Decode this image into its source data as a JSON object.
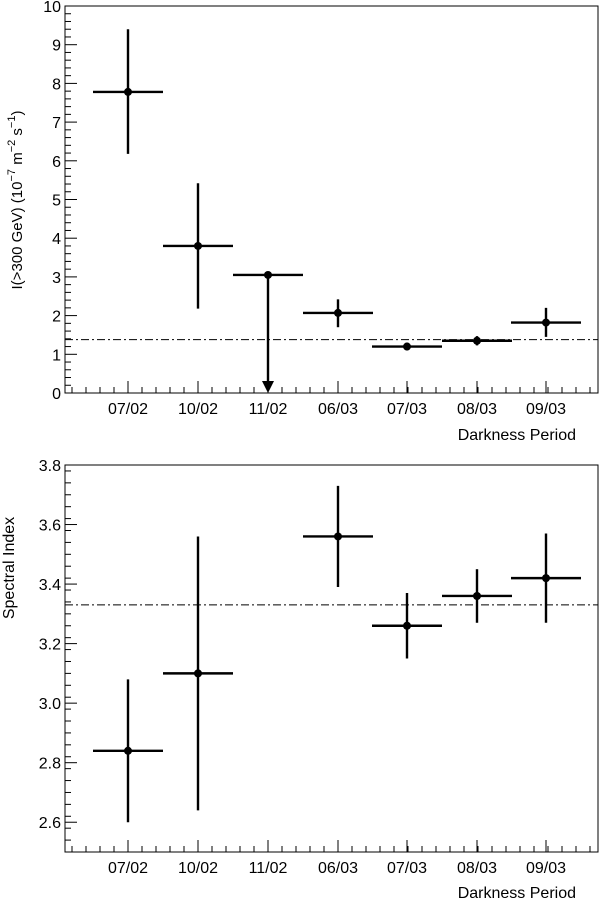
{
  "chart_data": [
    {
      "type": "scatter",
      "error_bars": true,
      "categories": [
        "07/02",
        "10/02",
        "11/02",
        "06/03",
        "07/03",
        "08/03",
        "09/03"
      ],
      "xlabel": "Darkness  Period",
      "ylabel": "I(>300 GeV)  (10",
      "ylabel_sup1": "−7",
      "ylabel_unit1": " m",
      "ylabel_sup2": "−2",
      "ylabel_unit2": " s",
      "ylabel_sup3": "−1",
      "ylabel_close": ")",
      "ylim": [
        0,
        10
      ],
      "yticks": [
        "0",
        "1",
        "2",
        "3",
        "4",
        "5",
        "6",
        "7",
        "8",
        "9",
        "10"
      ],
      "reference_line": 1.38,
      "points": [
        {
          "category": "07/02",
          "y": 7.78,
          "y_low": 6.18,
          "y_high": 9.4
        },
        {
          "category": "10/02",
          "y": 3.8,
          "y_low": 2.18,
          "y_high": 5.42
        },
        {
          "category": "11/02",
          "y": 3.05,
          "upper_limit": true
        },
        {
          "category": "06/03",
          "y": 2.07,
          "y_low": 1.7,
          "y_high": 2.42
        },
        {
          "category": "07/03",
          "y": 1.2,
          "y_low": 1.1,
          "y_high": 1.3
        },
        {
          "category": "08/03",
          "y": 1.35,
          "y_low": 1.23,
          "y_high": 1.47
        },
        {
          "category": "09/03",
          "y": 1.82,
          "y_low": 1.45,
          "y_high": 2.2
        }
      ]
    },
    {
      "type": "scatter",
      "error_bars": true,
      "categories": [
        "07/02",
        "10/02",
        "11/02",
        "06/03",
        "07/03",
        "08/03",
        "09/03"
      ],
      "xlabel": "Darkness  Period",
      "ylabel": "Spectral Index",
      "ylim": [
        2.5,
        3.8
      ],
      "yticks": [
        "2.6",
        "2.8",
        "3.0",
        "3.2",
        "3.4",
        "3.6",
        "3.8"
      ],
      "reference_line": 3.33,
      "points": [
        {
          "category": "07/02",
          "y": 2.84,
          "y_low": 2.6,
          "y_high": 3.08
        },
        {
          "category": "10/02",
          "y": 3.1,
          "y_low": 2.64,
          "y_high": 3.56
        },
        {
          "category": "06/03",
          "y": 3.56,
          "y_low": 3.39,
          "y_high": 3.73
        },
        {
          "category": "07/03",
          "y": 3.26,
          "y_low": 3.15,
          "y_high": 3.37
        },
        {
          "category": "08/03",
          "y": 3.36,
          "y_low": 3.27,
          "y_high": 3.45
        },
        {
          "category": "09/03",
          "y": 3.42,
          "y_low": 3.27,
          "y_high": 3.57
        }
      ]
    }
  ]
}
